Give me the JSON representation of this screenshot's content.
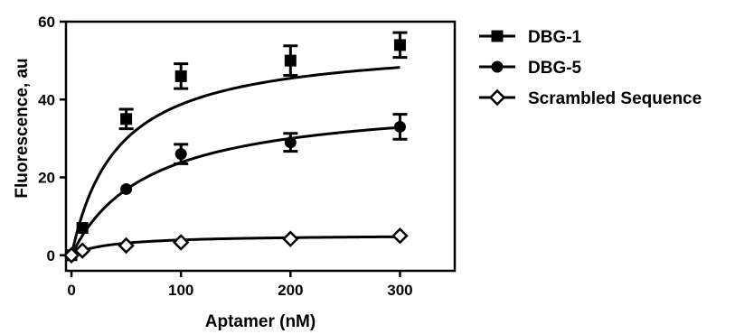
{
  "chart_data": {
    "type": "scatter",
    "title": "",
    "xlabel": "Aptamer (nM)",
    "ylabel": "Fluorescence, au",
    "xlim": [
      -5,
      350
    ],
    "ylim": [
      -4,
      60
    ],
    "xticks": [
      0,
      100,
      200,
      300
    ],
    "yticks": [
      0,
      20,
      40,
      60
    ],
    "xtick_labels": [
      "0",
      "100",
      "200",
      "300"
    ],
    "ytick_labels": [
      "0",
      "20",
      "40",
      "60"
    ],
    "grid": false,
    "legend_position": "right",
    "series": [
      {
        "name": "DBG-1",
        "marker": "square",
        "color": "#000000",
        "x": [
          0,
          10,
          50,
          100,
          200,
          300
        ],
        "y": [
          0,
          7,
          35,
          46,
          50,
          54
        ],
        "error": [
          0,
          0,
          2.5,
          3.2,
          3.8,
          3.2
        ],
        "fit_bmax": 55,
        "fit_kd": 42
      },
      {
        "name": "DBG-5",
        "marker": "circle",
        "color": "#000000",
        "x": [
          0,
          10,
          50,
          100,
          200,
          300
        ],
        "y": [
          0,
          7,
          17,
          26,
          29,
          33
        ],
        "error": [
          0,
          0,
          0,
          2.5,
          2.3,
          3.2
        ],
        "fit_bmax": 40.5,
        "fit_kd": 70
      },
      {
        "name": "Scrambled Sequence",
        "marker": "diamond-open",
        "color": "#000000",
        "x": [
          0,
          10,
          50,
          100,
          200,
          300
        ],
        "y": [
          0,
          1.2,
          2.5,
          3.3,
          4.2,
          5
        ],
        "error": [
          0,
          0,
          0,
          0,
          0,
          0
        ],
        "fit_bmax": 5.3,
        "fit_kd": 35
      }
    ]
  }
}
